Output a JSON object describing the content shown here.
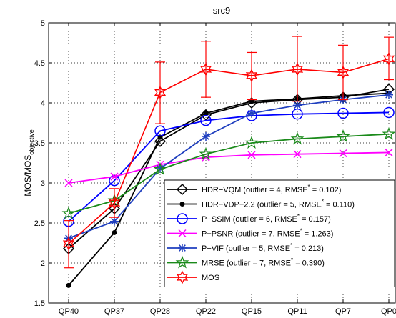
{
  "chart_data": {
    "type": "line",
    "title": "src9",
    "ylabel": "MOS/MOS",
    "ylabel_sub": "objective",
    "categories": [
      "QP40",
      "QP37",
      "QP28",
      "QP22",
      "QP15",
      "QP11",
      "QP7",
      "QP0"
    ],
    "ylim": [
      1.5,
      5
    ],
    "yticks": [
      "1.5",
      "2",
      "2.5",
      "3",
      "3.5",
      "4",
      "4.5",
      "5"
    ],
    "grid": true,
    "legend_position": "bottom-right",
    "series": [
      {
        "name": "HDR−VQM",
        "legend_label": "HDR−VQM (outlier = 4, RMSE",
        "legend_tail": " = 0.102)",
        "color": "#000000",
        "marker": "diamond",
        "values": [
          2.18,
          2.68,
          3.52,
          3.85,
          4.0,
          4.04,
          4.07,
          4.17
        ]
      },
      {
        "name": "HDR−VDP−2.2",
        "legend_label": "HDR−VDP−2.2 (outlier = 5, RMSE",
        "legend_tail": " = 0.110)",
        "color": "#000000",
        "marker": "dot",
        "values": [
          1.72,
          2.38,
          3.57,
          3.87,
          4.02,
          4.05,
          4.09,
          4.12
        ]
      },
      {
        "name": "P−SSIM",
        "legend_label": "P−SSIM (outlier = 6, RMSE",
        "legend_tail": " = 0.157)",
        "color": "#0000ff",
        "marker": "circle",
        "values": [
          2.52,
          3.03,
          3.65,
          3.78,
          3.84,
          3.86,
          3.87,
          3.88
        ]
      },
      {
        "name": "P−PSNR",
        "legend_label": "P−PSNR (outlier = 7, RMSE",
        "legend_tail": " = 1.263)",
        "color": "#ff00ff",
        "marker": "x",
        "values": [
          3.0,
          3.08,
          3.23,
          3.32,
          3.35,
          3.36,
          3.37,
          3.38
        ]
      },
      {
        "name": "P−VIF",
        "legend_label": "P−VIF (outlier = 5, RMSE",
        "legend_tail": " = 0.213)",
        "color": "#1f3fbf",
        "marker": "star",
        "values": [
          2.31,
          2.52,
          3.18,
          3.58,
          3.87,
          3.97,
          4.04,
          4.1
        ]
      },
      {
        "name": "MRSE",
        "legend_label": "MRSE (outlier = 7, RMSE",
        "legend_tail": " = 0.390)",
        "color": "#1a8a1a",
        "marker": "pentagram",
        "values": [
          2.62,
          2.78,
          3.17,
          3.36,
          3.5,
          3.55,
          3.58,
          3.61
        ]
      },
      {
        "name": "MOS",
        "legend_label": "MOS",
        "legend_tail": "",
        "color": "#ff0000",
        "marker": "hexagram",
        "values": [
          2.24,
          2.75,
          4.13,
          4.42,
          4.34,
          4.42,
          4.38,
          4.55
        ],
        "err_low": [
          1.94,
          2.57,
          3.74,
          4.07,
          4.04,
          4.02,
          4.04,
          4.29
        ],
        "err_high": [
          2.53,
          2.93,
          4.51,
          4.77,
          4.63,
          4.83,
          4.72,
          4.82
        ]
      }
    ]
  }
}
